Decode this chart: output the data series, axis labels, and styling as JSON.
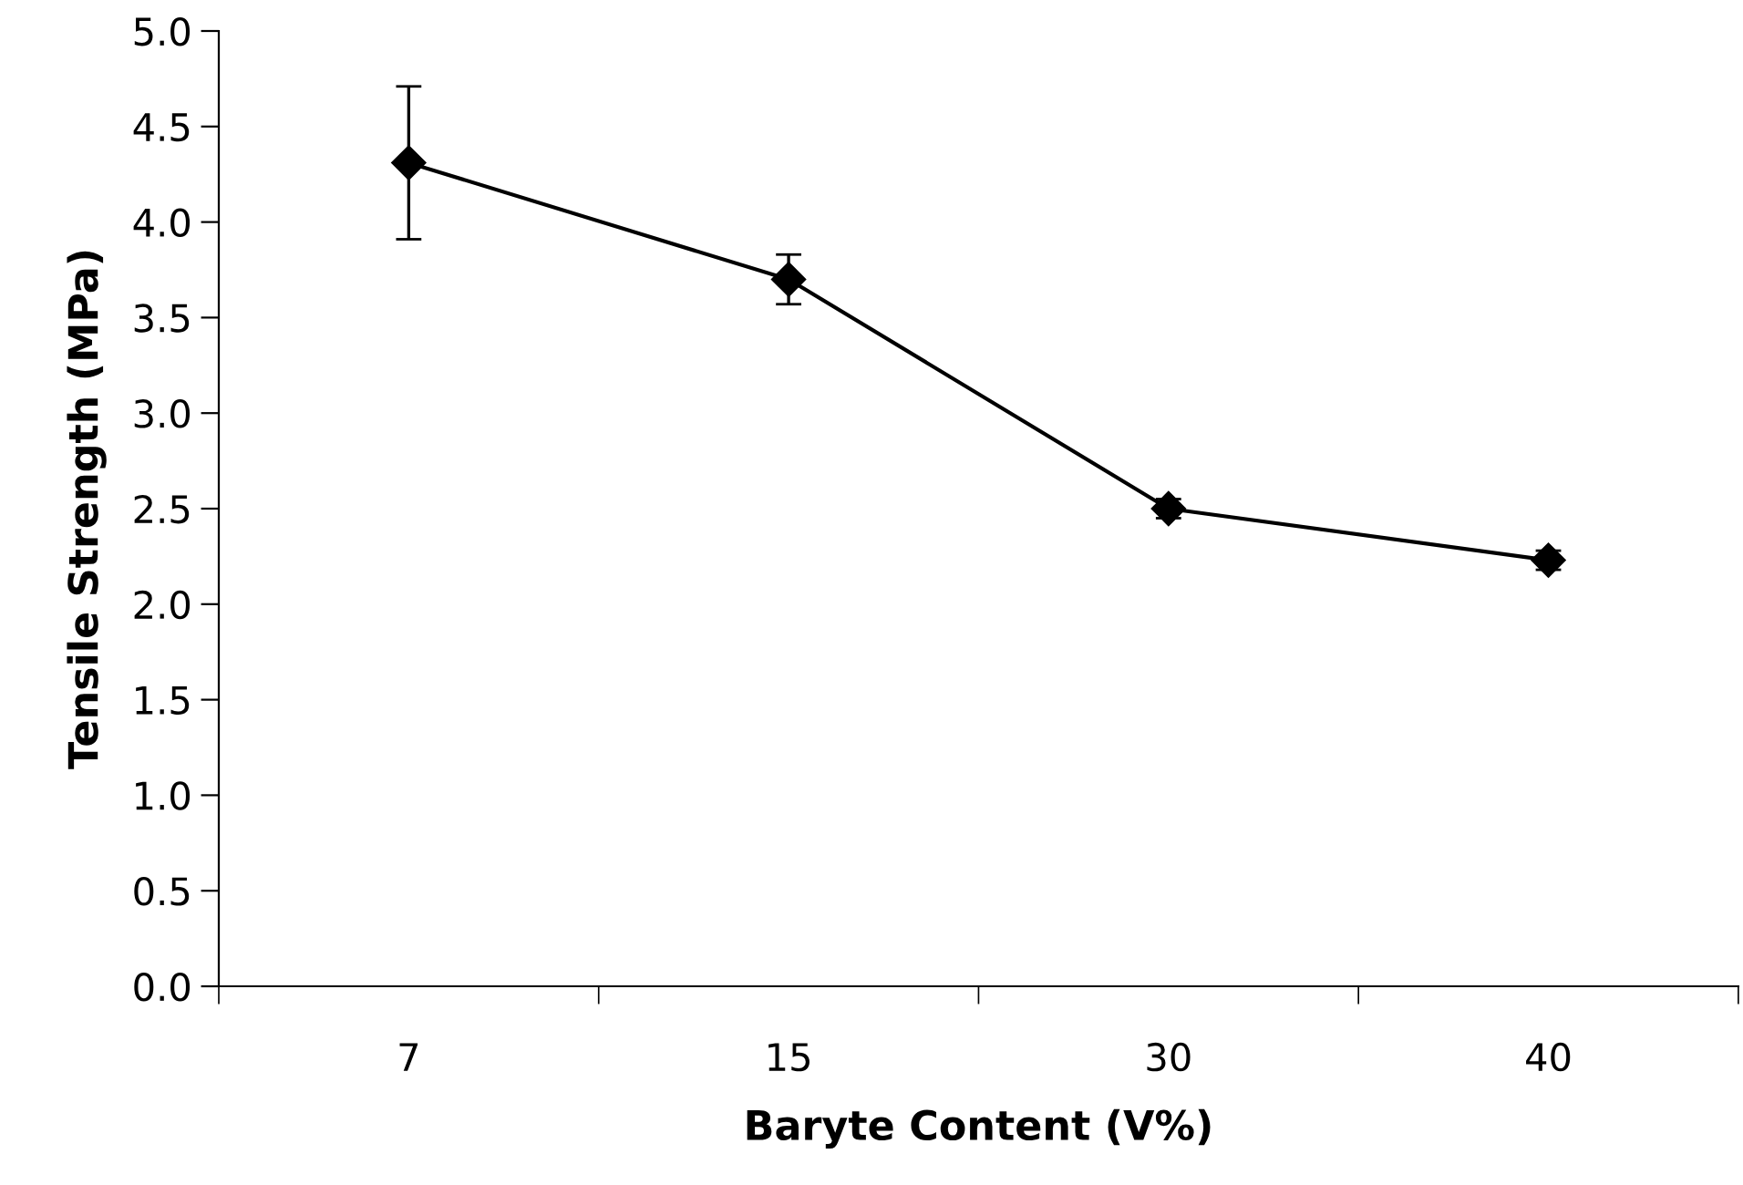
{
  "chart_data": {
    "type": "line",
    "xlabel": "Baryte Content (V%)",
    "ylabel": "Tensile Strength (MPa)",
    "categories": [
      "7",
      "15",
      "30",
      "40"
    ],
    "series": [
      {
        "color": "#000000",
        "values": [
          4.31,
          3.7,
          2.5,
          2.23
        ],
        "errors": [
          0.4,
          0.13,
          0.05,
          0.05
        ]
      }
    ],
    "ylim": [
      0,
      5
    ],
    "yticks": [
      {
        "value": 0,
        "label": "0.0"
      },
      {
        "value": 0.5,
        "label": "0.5"
      },
      {
        "value": 1,
        "label": "1.0"
      },
      {
        "value": 1.5,
        "label": "1.5"
      },
      {
        "value": 2,
        "label": "2.0"
      },
      {
        "value": 2.5,
        "label": "2.5"
      },
      {
        "value": 3,
        "label": "3.0"
      },
      {
        "value": 3.5,
        "label": "3.5"
      },
      {
        "value": 4,
        "label": "4.0"
      },
      {
        "value": 4.5,
        "label": "4.5"
      },
      {
        "value": 5,
        "label": "5.0"
      }
    ],
    "grid": false,
    "marker": "diamond",
    "line_style": "solid"
  }
}
